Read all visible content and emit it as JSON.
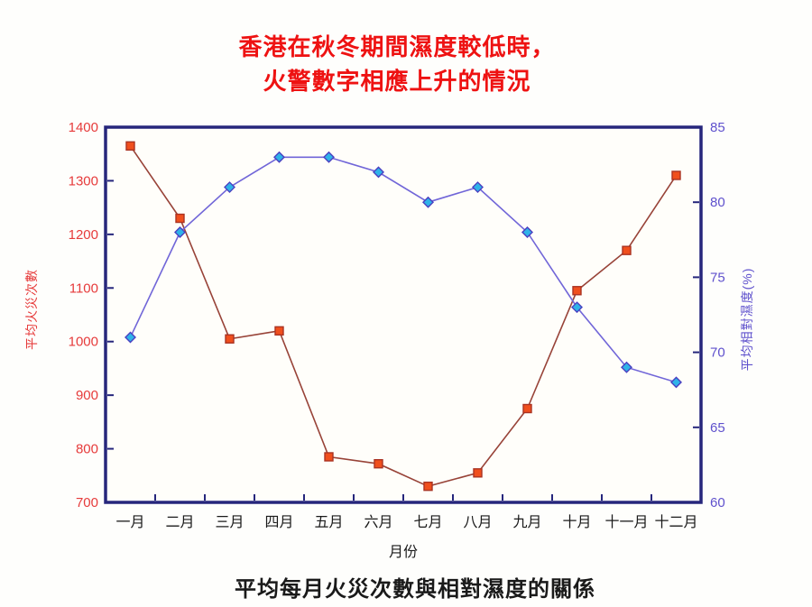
{
  "title": {
    "line1": "香港在秋冬期間濕度較低時，",
    "line2": "火警數字相應上升的情況",
    "color": "#ee1212"
  },
  "caption": {
    "text": "平均每月火災次數與相對濕度的關係"
  },
  "chart_data": {
    "type": "line",
    "title": "",
    "categories": [
      "一月",
      "二月",
      "三月",
      "四月",
      "五月",
      "六月",
      "七月",
      "八月",
      "九月",
      "十月",
      "十一月",
      "十二月"
    ],
    "series": [
      {
        "id": "fire-series",
        "name": "平均火災次數",
        "axis": "left",
        "values": [
          1365,
          1230,
          1005,
          1020,
          785,
          772,
          730,
          755,
          875,
          1095,
          1170,
          1310
        ],
        "line_color": "#984338",
        "marker": "square",
        "marker_fill": "#f04f1d",
        "marker_stroke": "#aa3322"
      },
      {
        "id": "humidity-series",
        "name": "平均相對濕度",
        "axis": "right",
        "values": [
          71,
          78,
          81,
          83,
          83,
          82,
          80,
          81,
          78,
          73,
          69,
          68
        ],
        "line_color": "#7166d8",
        "marker": "diamond",
        "marker_fill": "#2fb3e8",
        "marker_stroke": "#4a3fc0"
      }
    ],
    "left_axis": {
      "label": "平均火災次數",
      "min": 700,
      "max": 1400,
      "step": 100,
      "color": "#e63b3b"
    },
    "right_axis": {
      "label": "平均相對濕度(%)",
      "min": 60,
      "max": 85,
      "step": 5,
      "color": "#5f51cd"
    },
    "x_axis": {
      "label": "月份",
      "color": "#1a1a1a"
    },
    "frame_color": "#26267c",
    "plot_bg": "#fffefa",
    "grid": false,
    "legend": "none"
  }
}
